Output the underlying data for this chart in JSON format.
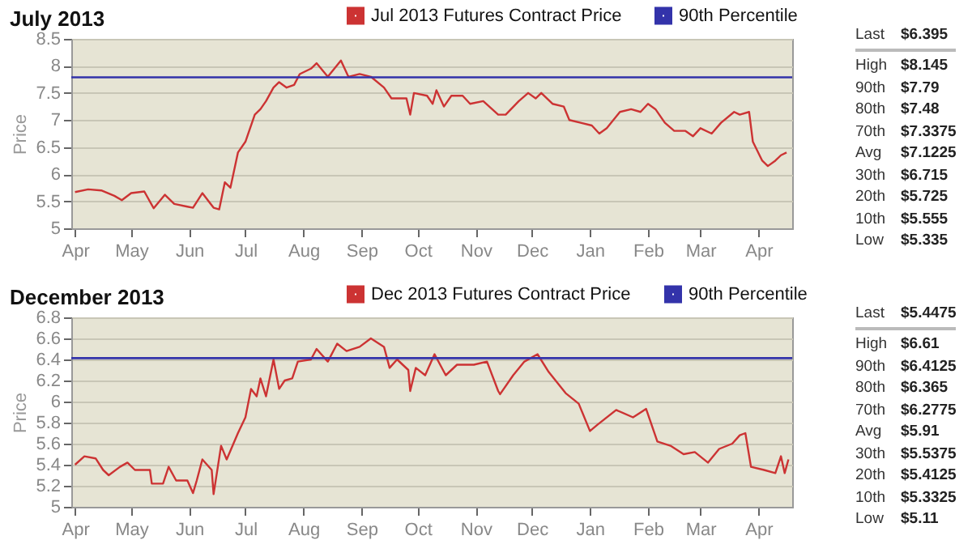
{
  "chart_data": [
    {
      "type": "line",
      "title": "July 2013",
      "ylabel": "Price",
      "grid": "y",
      "legend": "top right",
      "x": [
        "2012-04-01",
        "2012-04-08",
        "2012-04-15",
        "2012-04-22",
        "2012-04-26",
        "2012-05-01",
        "2012-05-08",
        "2012-05-13",
        "2012-05-19",
        "2012-05-24",
        "2012-05-31",
        "2012-06-03",
        "2012-06-08",
        "2012-06-14",
        "2012-06-17",
        "2012-06-20",
        "2012-06-23",
        "2012-06-27",
        "2012-07-01",
        "2012-07-06",
        "2012-07-09",
        "2012-07-12",
        "2012-07-16",
        "2012-07-19",
        "2012-07-23",
        "2012-07-27",
        "2012-07-30",
        "2012-08-05",
        "2012-08-08",
        "2012-08-14",
        "2012-08-21",
        "2012-08-25",
        "2012-08-31",
        "2012-09-06",
        "2012-09-13",
        "2012-09-17",
        "2012-09-25",
        "2012-09-27",
        "2012-09-29",
        "2012-10-06",
        "2012-10-09",
        "2012-10-11",
        "2012-10-15",
        "2012-10-19",
        "2012-10-25",
        "2012-10-29",
        "2012-11-05",
        "2012-11-13",
        "2012-11-17",
        "2012-11-24",
        "2012-11-29",
        "2012-12-03",
        "2012-12-06",
        "2012-12-12",
        "2012-12-18",
        "2012-12-21",
        "2012-12-27",
        "2013-01-02",
        "2013-01-06",
        "2013-01-10",
        "2013-01-17",
        "2013-01-23",
        "2013-01-28",
        "2013-02-01",
        "2013-02-05",
        "2013-02-10",
        "2013-02-15",
        "2013-02-21",
        "2013-02-25",
        "2013-03-01",
        "2013-03-07",
        "2013-03-12",
        "2013-03-19",
        "2013-03-22",
        "2013-03-27",
        "2013-03-29",
        "2013-04-03",
        "2013-04-06",
        "2013-04-10",
        "2013-04-13",
        "2013-04-16"
      ],
      "series": [
        {
          "name": "Jul 2013 Futures Contract Price",
          "color": "#cc3333",
          "values": [
            5.67,
            5.72,
            5.7,
            5.6,
            5.52,
            5.65,
            5.68,
            5.37,
            5.62,
            5.45,
            5.4,
            5.38,
            5.65,
            5.38,
            5.35,
            5.85,
            5.75,
            6.4,
            6.6,
            7.1,
            7.2,
            7.35,
            7.6,
            7.7,
            7.6,
            7.65,
            7.85,
            7.95,
            8.05,
            7.8,
            8.1,
            7.8,
            7.85,
            7.8,
            7.6,
            7.4,
            7.4,
            7.1,
            7.5,
            7.45,
            7.3,
            7.55,
            7.25,
            7.45,
            7.45,
            7.3,
            7.35,
            7.1,
            7.1,
            7.35,
            7.5,
            7.4,
            7.5,
            7.3,
            7.25,
            7.0,
            6.95,
            6.9,
            6.75,
            6.85,
            7.15,
            7.2,
            7.15,
            7.3,
            7.2,
            6.95,
            6.8,
            6.8,
            6.7,
            6.85,
            6.75,
            6.95,
            7.15,
            7.1,
            7.15,
            6.6,
            6.25,
            6.15,
            6.25,
            6.35,
            6.4
          ]
        }
      ],
      "xlim": [
        "2012-03-30",
        "2013-04-19"
      ],
      "xticks": [
        {
          "value": "2012-04-01",
          "label": "Apr"
        },
        {
          "value": "2012-05-01",
          "label": "May"
        },
        {
          "value": "2012-06-01",
          "label": "Jun"
        },
        {
          "value": "2012-07-01",
          "label": "Jul"
        },
        {
          "value": "2012-08-01",
          "label": "Aug"
        },
        {
          "value": "2012-09-01",
          "label": "Sep"
        },
        {
          "value": "2012-10-01",
          "label": "Oct"
        },
        {
          "value": "2012-11-01",
          "label": "Nov"
        },
        {
          "value": "2012-12-01",
          "label": "Dec"
        },
        {
          "value": "2013-01-01",
          "label": "Jan"
        },
        {
          "value": "2013-02-01",
          "label": "Feb"
        },
        {
          "value": "2013-03-01",
          "label": "Mar"
        },
        {
          "value": "2013-04-01",
          "label": "Apr"
        }
      ],
      "ylim": [
        5,
        8.5
      ],
      "yticks": [
        5,
        5.5,
        6,
        6.5,
        7,
        7.5,
        8,
        8.5
      ],
      "ref_lines": [
        {
          "axis": "y",
          "value": 7.79,
          "label": "90th Percentile",
          "color": "#3333aa"
        }
      ],
      "annotations": [
        "Last",
        "$6.395",
        "High",
        "$8.145",
        "90th",
        "$7.79",
        "80th",
        "$7.48",
        "70th",
        "$7.3375",
        "Avg",
        "$7.1225",
        "30th",
        "$6.715",
        "20th",
        "$5.725",
        "10th",
        "$5.555",
        "Low",
        "$5.335"
      ]
    },
    {
      "type": "line",
      "title": "December 2013",
      "ylabel": "Price",
      "grid": "y",
      "legend": "top right",
      "x": [
        "2012-04-01",
        "2012-04-06",
        "2012-04-12",
        "2012-04-16",
        "2012-04-19",
        "2012-04-25",
        "2012-04-29",
        "2012-05-03",
        "2012-05-11",
        "2012-05-12",
        "2012-05-18",
        "2012-05-21",
        "2012-05-25",
        "2012-05-31",
        "2012-06-03",
        "2012-06-05",
        "2012-06-08",
        "2012-06-13",
        "2012-06-14",
        "2012-06-18",
        "2012-06-21",
        "2012-06-27",
        "2012-07-01",
        "2012-07-04",
        "2012-07-07",
        "2012-07-09",
        "2012-07-12",
        "2012-07-16",
        "2012-07-19",
        "2012-07-22",
        "2012-07-26",
        "2012-07-29",
        "2012-08-05",
        "2012-08-08",
        "2012-08-14",
        "2012-08-19",
        "2012-08-24",
        "2012-08-31",
        "2012-09-06",
        "2012-09-13",
        "2012-09-16",
        "2012-09-20",
        "2012-09-26",
        "2012-09-27",
        "2012-09-30",
        "2012-10-05",
        "2012-10-10",
        "2012-10-16",
        "2012-10-22",
        "2012-10-31",
        "2012-11-07",
        "2012-11-13",
        "2012-11-14",
        "2012-11-21",
        "2012-11-27",
        "2012-12-04",
        "2012-12-10",
        "2012-12-19",
        "2012-12-26",
        "2013-01-01",
        "2013-01-05",
        "2013-01-15",
        "2013-01-24",
        "2013-01-31",
        "2013-02-06",
        "2013-02-13",
        "2013-02-20",
        "2013-02-26",
        "2013-03-05",
        "2013-03-11",
        "2013-03-18",
        "2013-03-22",
        "2013-03-25",
        "2013-03-28",
        "2013-04-04",
        "2013-04-10",
        "2013-04-13",
        "2013-04-15",
        "2013-04-17"
      ],
      "series": [
        {
          "name": "Dec 2013 Futures Contract Price",
          "color": "#cc3333",
          "values": [
            5.4,
            5.48,
            5.46,
            5.35,
            5.3,
            5.38,
            5.42,
            5.35,
            5.35,
            5.22,
            5.22,
            5.38,
            5.25,
            5.25,
            5.13,
            5.25,
            5.45,
            5.35,
            5.12,
            5.58,
            5.45,
            5.7,
            5.85,
            6.12,
            6.05,
            6.22,
            6.05,
            6.4,
            6.12,
            6.2,
            6.22,
            6.38,
            6.4,
            6.5,
            6.38,
            6.55,
            6.48,
            6.52,
            6.6,
            6.52,
            6.32,
            6.4,
            6.3,
            6.1,
            6.32,
            6.25,
            6.45,
            6.25,
            6.35,
            6.35,
            6.38,
            6.1,
            6.07,
            6.25,
            6.38,
            6.45,
            6.28,
            6.08,
            5.98,
            5.72,
            5.78,
            5.92,
            5.85,
            5.93,
            5.62,
            5.58,
            5.5,
            5.52,
            5.42,
            5.55,
            5.6,
            5.68,
            5.7,
            5.38,
            5.35,
            5.32,
            5.48,
            5.32,
            5.45
          ]
        }
      ],
      "xlim": [
        "2012-03-30",
        "2013-04-19"
      ],
      "xticks": [
        {
          "value": "2012-04-01",
          "label": "Apr"
        },
        {
          "value": "2012-05-01",
          "label": "May"
        },
        {
          "value": "2012-06-01",
          "label": "Jun"
        },
        {
          "value": "2012-07-01",
          "label": "Jul"
        },
        {
          "value": "2012-08-01",
          "label": "Aug"
        },
        {
          "value": "2012-09-01",
          "label": "Sep"
        },
        {
          "value": "2012-10-01",
          "label": "Oct"
        },
        {
          "value": "2012-11-01",
          "label": "Nov"
        },
        {
          "value": "2012-12-01",
          "label": "Dec"
        },
        {
          "value": "2013-01-01",
          "label": "Jan"
        },
        {
          "value": "2013-02-01",
          "label": "Feb"
        },
        {
          "value": "2013-03-01",
          "label": "Mar"
        },
        {
          "value": "2013-04-01",
          "label": "Apr"
        }
      ],
      "ylim": [
        5,
        6.8
      ],
      "yticks": [
        5,
        5.2,
        5.4,
        5.6,
        5.8,
        6,
        6.2,
        6.4,
        6.6,
        6.8
      ],
      "ref_lines": [
        {
          "axis": "y",
          "value": 6.4125,
          "label": "90th Percentile",
          "color": "#3333aa"
        }
      ],
      "annotations": [
        "Last",
        "$5.4475",
        "High",
        "$6.61",
        "90th",
        "$6.4125",
        "80th",
        "$6.365",
        "70th",
        "$6.2775",
        "Avg",
        "$5.91",
        "30th",
        "$5.5375",
        "20th",
        "$5.4125",
        "10th",
        "$5.3325",
        "Low",
        "$5.11"
      ]
    }
  ]
}
